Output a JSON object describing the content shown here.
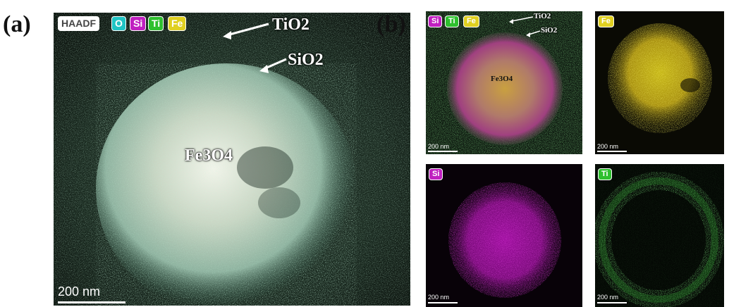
{
  "panel_a": {
    "label": "(a)",
    "badges": {
      "haadf": "HAADF",
      "o": "O",
      "si": "Si",
      "ti": "Ti",
      "fe": "Fe"
    },
    "annotations": {
      "tio2": "TiO2",
      "sio2": "SiO2",
      "core": "Fe3O4"
    },
    "scale_bar": "200 nm"
  },
  "panel_b": {
    "label": "(b)",
    "composite": {
      "badges": {
        "si": "Si",
        "ti": "Ti",
        "fe": "Fe"
      },
      "annotations": {
        "tio2": "TiO2",
        "sio2": "SiO2",
        "core": "Fe3O4"
      },
      "scale_bar": "200 nm"
    },
    "fe_map": {
      "badge": "Fe",
      "scale_bar": "200 nm"
    },
    "si_map": {
      "badge": "Si",
      "scale_bar": "200 nm"
    },
    "ti_map": {
      "badge": "Ti",
      "scale_bar": "200 nm"
    }
  },
  "colors": {
    "haadf_badge_bg": "#ffffff",
    "o_badge_bg": "#20c4c4",
    "si_badge_bg": "#c020c0",
    "ti_badge_bg": "#2ec02e",
    "fe_badge_bg": "#e0d020",
    "fe_map": "#d8c818",
    "si_map": "#a010a0",
    "ti_map": "#30b030"
  }
}
